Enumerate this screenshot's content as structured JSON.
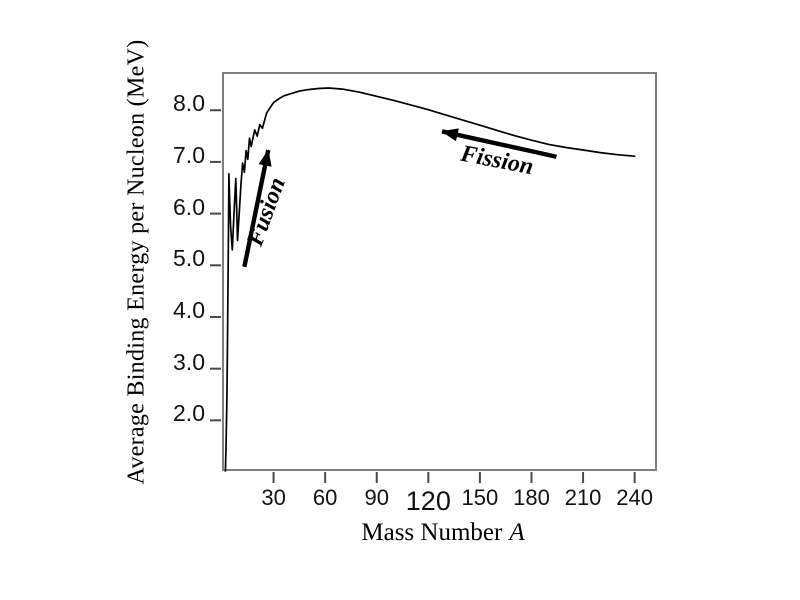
{
  "figure": {
    "background": "#ffffff",
    "plot_border_color": "#7f7f7f",
    "tick_color": "#4a4a4a",
    "curve_color": "#000000",
    "annotation_color": "#000000",
    "text_color": "#000000"
  },
  "chart_data": {
    "type": "line",
    "title": "",
    "xlabel": "Mass Number",
    "xlabel_italic_suffix": "A",
    "ylabel": "Average Binding Energy per Nucleon (MeV)",
    "xlim": [
      0,
      253
    ],
    "ylim": [
      1.02,
      8.74
    ],
    "grid": false,
    "legend_position": "none",
    "x_ticks": [
      {
        "value": 30,
        "label": "30",
        "large": false
      },
      {
        "value": 60,
        "label": "60",
        "large": false
      },
      {
        "value": 90,
        "label": "90",
        "large": false
      },
      {
        "value": 120,
        "label": "120",
        "large": true
      },
      {
        "value": 150,
        "label": "150",
        "large": false
      },
      {
        "value": 180,
        "label": "180",
        "large": false
      },
      {
        "value": 210,
        "label": "210",
        "large": false
      },
      {
        "value": 240,
        "label": "240",
        "large": false
      }
    ],
    "y_ticks": [
      {
        "value": 2,
        "label": "2.0"
      },
      {
        "value": 3,
        "label": "3.0"
      },
      {
        "value": 4,
        "label": "4.0"
      },
      {
        "value": 5,
        "label": "5.0"
      },
      {
        "value": 6,
        "label": "6.0"
      },
      {
        "value": 7,
        "label": "7.0"
      },
      {
        "value": 8,
        "label": "8.0"
      }
    ],
    "series": [
      {
        "name": "average-binding-energy-per-nucleon-curve",
        "points": [
          [
            2,
            1.02
          ],
          [
            2.4,
            1.55
          ],
          [
            2.8,
            2.3
          ],
          [
            3.1,
            3.1
          ],
          [
            3.4,
            4.2
          ],
          [
            3.7,
            5.5
          ],
          [
            4,
            6.77
          ],
          [
            4.4,
            6.3
          ],
          [
            5,
            5.75
          ],
          [
            6,
            5.3
          ],
          [
            7,
            6.0
          ],
          [
            8,
            6.68
          ],
          [
            8.5,
            6.15
          ],
          [
            9,
            5.48
          ],
          [
            10,
            6.0
          ],
          [
            11,
            6.55
          ],
          [
            12,
            6.98
          ],
          [
            13,
            6.8
          ],
          [
            14,
            7.22
          ],
          [
            15,
            7.05
          ],
          [
            16,
            7.46
          ],
          [
            17,
            7.3
          ],
          [
            19,
            7.62
          ],
          [
            20.5,
            7.5
          ],
          [
            22,
            7.72
          ],
          [
            23.5,
            7.65
          ],
          [
            26,
            7.95
          ],
          [
            28,
            8.05
          ],
          [
            30,
            8.15
          ],
          [
            33,
            8.22
          ],
          [
            36,
            8.28
          ],
          [
            40,
            8.32
          ],
          [
            45,
            8.37
          ],
          [
            50,
            8.4
          ],
          [
            56,
            8.42
          ],
          [
            62,
            8.43
          ],
          [
            70,
            8.41
          ],
          [
            80,
            8.35
          ],
          [
            90,
            8.27
          ],
          [
            100,
            8.19
          ],
          [
            110,
            8.1
          ],
          [
            120,
            8.01
          ],
          [
            130,
            7.91
          ],
          [
            140,
            7.81
          ],
          [
            150,
            7.71
          ],
          [
            160,
            7.61
          ],
          [
            170,
            7.51
          ],
          [
            180,
            7.42
          ],
          [
            190,
            7.34
          ],
          [
            200,
            7.28
          ],
          [
            210,
            7.23
          ],
          [
            220,
            7.18
          ],
          [
            230,
            7.14
          ],
          [
            240,
            7.11
          ]
        ]
      }
    ],
    "annotations": [
      {
        "name": "fusion",
        "label": "Fusion",
        "arrow_from": [
          13.0,
          4.97
        ],
        "arrow_to": [
          26.9,
          7.23
        ],
        "label_at": [
          26.2,
          6.03
        ],
        "label_rotation_deg": -70
      },
      {
        "name": "fission",
        "label": "Fission",
        "arrow_from": [
          194.5,
          7.1
        ],
        "arrow_to": [
          128.0,
          7.59
        ],
        "label_at": [
          160.0,
          7.01
        ],
        "label_rotation_deg": 11
      }
    ]
  }
}
